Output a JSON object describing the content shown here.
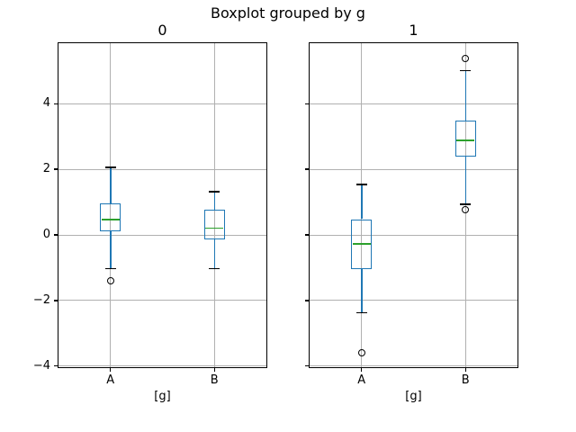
{
  "title": "Boxplot grouped by g",
  "chart_data": {
    "type": "boxplot",
    "title": "Boxplot grouped by g",
    "xlabel": "[g]",
    "categories": [
      "A",
      "B"
    ],
    "yticks": [
      -4,
      -2,
      0,
      2,
      4
    ],
    "ylim": [
      -4.03,
      5.84
    ],
    "grid": true,
    "legend": "none",
    "colors": {
      "box": "#1f77b4",
      "whisker": "#1f77b4",
      "median": "#2ca02c",
      "cap": "#000000",
      "flier_edge": "#000000",
      "grid": "#b0b0b0",
      "spine": "#000000",
      "background": "#ffffff"
    },
    "subplots": [
      {
        "title": "0",
        "boxes": [
          {
            "category": "A",
            "whislo": -1.03,
            "q1": 0.12,
            "med": 0.46,
            "q3": 0.95,
            "whishi": 2.05,
            "fliers": [
              -1.41
            ]
          },
          {
            "category": "B",
            "whislo": -1.03,
            "q1": -0.14,
            "med": 0.2,
            "q3": 0.78,
            "whishi": 1.32,
            "fliers": []
          }
        ]
      },
      {
        "title": "1",
        "boxes": [
          {
            "category": "A",
            "whislo": -2.37,
            "q1": -1.05,
            "med": -0.28,
            "q3": 0.48,
            "whishi": 1.54,
            "fliers": [
              -3.58
            ]
          },
          {
            "category": "B",
            "whislo": 0.93,
            "q1": 2.38,
            "med": 2.88,
            "q3": 3.47,
            "whishi": 5.0,
            "fliers": [
              5.38,
              0.78
            ]
          }
        ]
      }
    ]
  }
}
